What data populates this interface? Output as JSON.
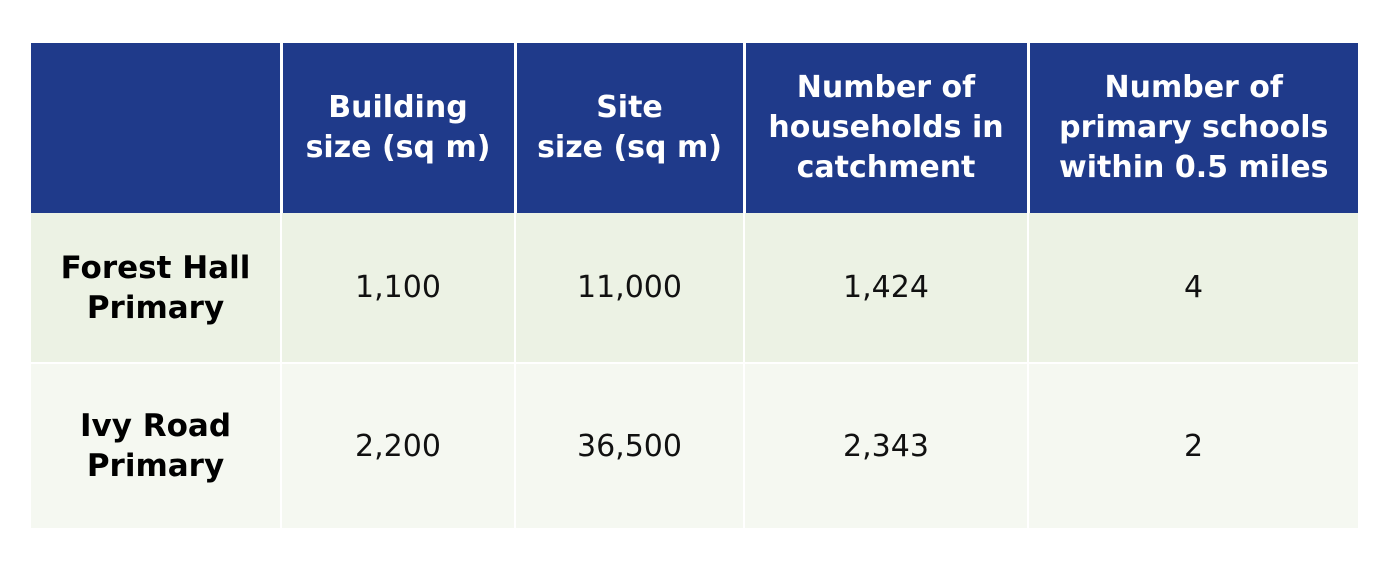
{
  "table": {
    "headers": [
      [],
      [
        "Building",
        "size (sq m)"
      ],
      [
        "Site",
        "size (sq m)"
      ],
      [
        "Number of",
        "households in",
        "catchment"
      ],
      [
        "Number of",
        "primary schools",
        "within 0.5 miles"
      ]
    ],
    "rows": [
      {
        "name": [
          "Forest Hall",
          "Primary"
        ],
        "building_size": "1,100",
        "site_size": "11,000",
        "households": "1,424",
        "schools_nearby": "4"
      },
      {
        "name": [
          "Ivy Road",
          "Primary"
        ],
        "building_size": "2,200",
        "site_size": "36,500",
        "households": "2,343",
        "schools_nearby": "2"
      }
    ]
  },
  "colors": {
    "header_bg": "#1f3a8a",
    "row_1_bg": "#ecf2e4",
    "row_2_bg": "#f5f8f1"
  }
}
